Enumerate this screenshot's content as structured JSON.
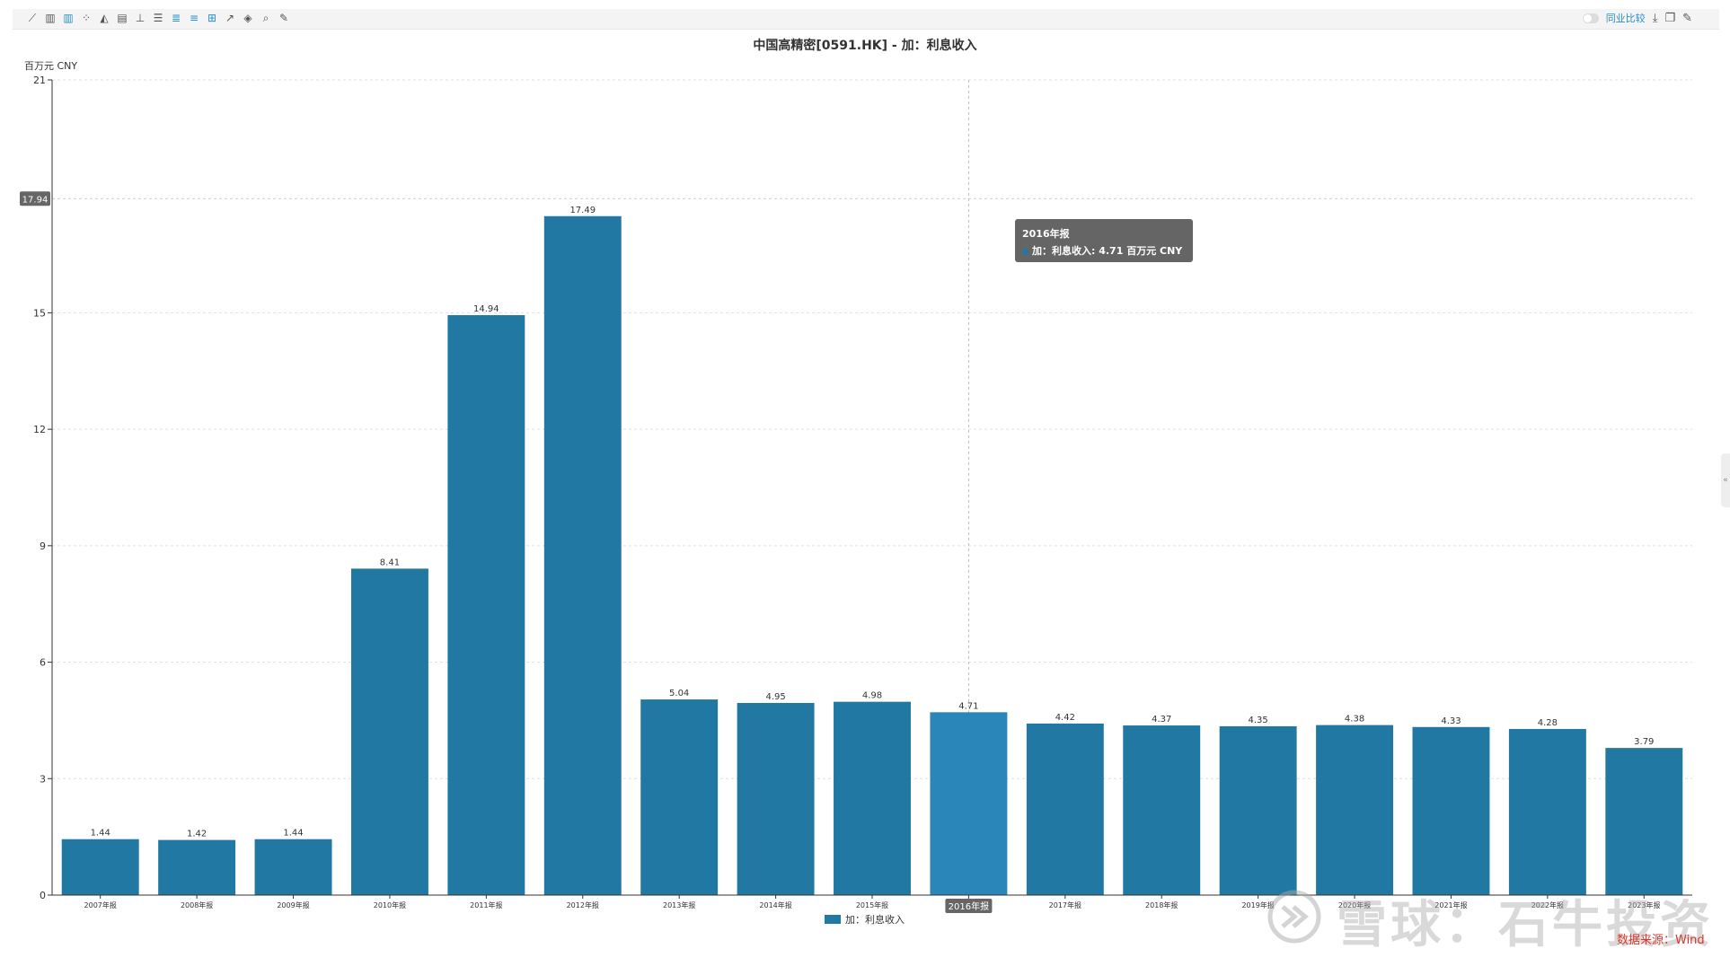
{
  "toolbar": {
    "icons": [
      "line-chart-icon",
      "bar-chart-icon",
      "grouped-bar-icon",
      "scatter-icon",
      "area-chart-icon",
      "bar-add-icon",
      "axis-icon",
      "stack-icon",
      "list-icon",
      "list-alt-icon",
      "grid-icon",
      "trend-icon",
      "fill-icon",
      "zoom-icon",
      "wrench-icon"
    ],
    "peer_compare_label": "同业比较",
    "right_icons": [
      "download-icon",
      "copy-icon",
      "edit-icon"
    ]
  },
  "chart_data": {
    "type": "bar",
    "title": "中国高精密[0591.HK] - 加：利息收入",
    "unit_label": "百万元  CNY",
    "categories": [
      "2007年报",
      "2008年报",
      "2009年报",
      "2010年报",
      "2011年报",
      "2012年报",
      "2013年报",
      "2014年报",
      "2015年报",
      "2016年报",
      "2017年报",
      "2018年报",
      "2019年报",
      "2020年报",
      "2021年报",
      "2022年报",
      "2023年报"
    ],
    "series": [
      {
        "name": "加：利息收入",
        "values": [
          1.44,
          1.42,
          1.44,
          8.41,
          14.94,
          17.49,
          5.04,
          4.95,
          4.98,
          4.71,
          4.42,
          4.37,
          4.35,
          4.38,
          4.33,
          4.28,
          3.79
        ]
      }
    ],
    "value_labels": [
      "1.44",
      "1.42",
      "1.44",
      "8.41",
      "14.94",
      "17.49",
      "5.04",
      "4.95",
      "4.98",
      "4.71",
      "4.42",
      "4.37",
      "4.35",
      "4.38",
      "4.33",
      "4.28",
      "3.79"
    ],
    "yticks": [
      0,
      3,
      6,
      9,
      12,
      15,
      21
    ],
    "ytick_labels": [
      "0",
      "3",
      "6",
      "9",
      "12",
      "15",
      "21"
    ],
    "ylim": [
      0,
      21
    ],
    "crosshair_y_value": 17.94,
    "crosshair_y_label": "17.94",
    "highlighted_index": 9,
    "grid": true,
    "legend_position": "bottom-center",
    "colors": {
      "bar": "#2178a3",
      "bar_highlight": "#2a86b8",
      "axis": "#333333",
      "grid": "#e0e0e0"
    }
  },
  "tooltip": {
    "title": "2016年报",
    "row": "加：利息收入: 4.71  百万元  CNY"
  },
  "watermark": {
    "text": "雪球：石牛投资",
    "source": "数据来源：Wind"
  }
}
